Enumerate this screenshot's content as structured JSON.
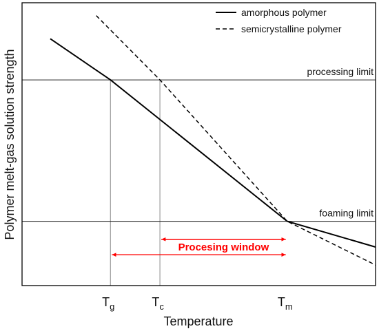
{
  "chart_data": {
    "type": "line",
    "ylabel": "Polymer melt-gas solution strength",
    "xlabel": "Temperature",
    "ticks": [
      {
        "id": "tg",
        "base": "T",
        "sub": "g",
        "x": 0.25
      },
      {
        "id": "tc",
        "base": "T",
        "sub": "c",
        "x": 0.39
      },
      {
        "id": "tm",
        "base": "T",
        "sub": "m",
        "x": 0.75
      }
    ],
    "reference_lines": [
      {
        "id": "processing",
        "label": "processing limit",
        "y": 0.8
      },
      {
        "id": "foaming",
        "label": "foaming limit",
        "y": 0.25
      }
    ],
    "series": [
      {
        "id": "amorphous",
        "name": "amorphous polymer",
        "style": "solid",
        "points": [
          [
            0.08,
            0.96
          ],
          [
            0.25,
            0.8
          ],
          [
            0.75,
            0.25
          ],
          [
            1.0,
            0.15
          ]
        ]
      },
      {
        "id": "semicrystalline",
        "name": "semicrystalline polymer",
        "style": "dashed",
        "points": [
          [
            0.21,
            1.05
          ],
          [
            0.39,
            0.8
          ],
          [
            0.75,
            0.25
          ],
          [
            1.0,
            0.08
          ]
        ]
      }
    ],
    "annotations": [
      {
        "id": "window",
        "text": "Procesing window",
        "color": "#ff0000",
        "arrows": [
          {
            "from": 0.39,
            "to": 0.75,
            "y": 0.18
          },
          {
            "from": 0.25,
            "to": 0.75,
            "y": 0.12
          }
        ]
      }
    ],
    "xlim": [
      0,
      1
    ],
    "ylim": [
      0,
      1.1
    ],
    "legend": "top-right",
    "grid": false
  }
}
